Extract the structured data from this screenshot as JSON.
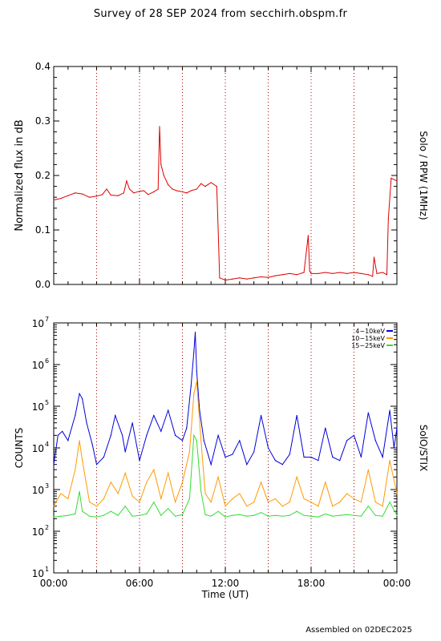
{
  "header": {
    "title": "Survey of 28 SEP 2024 from secchirh.obspm.fr"
  },
  "footer": {
    "assembled": "Assembled on 02DEC2025"
  },
  "chart_data": [
    {
      "type": "line",
      "instrument_label": "Solo / RPW (1MHz)",
      "ylabel": "Normalized flux in dB",
      "xlim": [
        "00:00",
        "24:00"
      ],
      "ylim": [
        0,
        0.4
      ],
      "yticks": [
        "0.0",
        "0.1",
        "0.2",
        "0.3",
        "0.4"
      ],
      "vlines_hours": [
        3,
        6,
        9,
        12,
        15,
        18,
        21
      ],
      "series": [
        {
          "color": "#dd0000",
          "x_hours": [
            0,
            0.5,
            1,
            1.5,
            2,
            2.5,
            3,
            3.4,
            3.7,
            4,
            4.5,
            4.9,
            5.1,
            5.3,
            5.6,
            6,
            6.3,
            6.6,
            7,
            7.3,
            7.4,
            7.5,
            7.7,
            8,
            8.3,
            8.6,
            9,
            9.3,
            9.6,
            10,
            10.3,
            10.6,
            11,
            11.4,
            11.5,
            11.6,
            12,
            12.5,
            13,
            13.5,
            14,
            14.5,
            15,
            15.5,
            16,
            16.5,
            17,
            17.5,
            17.8,
            17.9,
            18,
            18.5,
            19,
            19.5,
            20,
            20.5,
            21,
            21.5,
            22,
            22.3,
            22.4,
            22.6,
            23,
            23.3,
            23.4,
            23.6,
            24
          ],
          "y": [
            0.155,
            0.158,
            0.163,
            0.168,
            0.166,
            0.16,
            0.162,
            0.165,
            0.175,
            0.164,
            0.163,
            0.168,
            0.19,
            0.175,
            0.168,
            0.171,
            0.172,
            0.165,
            0.17,
            0.175,
            0.29,
            0.22,
            0.2,
            0.183,
            0.175,
            0.172,
            0.17,
            0.168,
            0.172,
            0.175,
            0.185,
            0.18,
            0.187,
            0.18,
            0.1,
            0.012,
            0.008,
            0.01,
            0.012,
            0.01,
            0.012,
            0.014,
            0.013,
            0.016,
            0.018,
            0.02,
            0.018,
            0.022,
            0.09,
            0.025,
            0.02,
            0.02,
            0.022,
            0.02,
            0.022,
            0.02,
            0.022,
            0.02,
            0.018,
            0.015,
            0.05,
            0.02,
            0.022,
            0.018,
            0.12,
            0.195,
            0.19
          ]
        }
      ]
    },
    {
      "type": "line",
      "instrument_label": "SolO/STIX",
      "ylabel": "COUNTS",
      "xlabel": "Time (UT)",
      "xlim": [
        "00:00",
        "24:00"
      ],
      "xticks": [
        "00:00",
        "06:00",
        "12:00",
        "18:00",
        "00:00"
      ],
      "ylim": [
        10,
        10000000
      ],
      "yscale": "log",
      "ytick_bases": [
        "10",
        "10",
        "10",
        "10",
        "10",
        "10",
        "10"
      ],
      "ytick_exponents": [
        "1",
        "2",
        "3",
        "4",
        "5",
        "6",
        "7"
      ],
      "vlines_hours": [
        3,
        6,
        9,
        12,
        15,
        18,
        21
      ],
      "legend_position": "top-right",
      "series": [
        {
          "name": "4−10keV",
          "color": "#0000dd",
          "x_hours": [
            0,
            0.3,
            0.6,
            1,
            1.5,
            1.8,
            2.0,
            2.3,
            2.7,
            3,
            3.5,
            4,
            4.3,
            4.8,
            5,
            5.5,
            6,
            6.5,
            7,
            7.5,
            8,
            8.5,
            9,
            9.3,
            9.6,
            9.8,
            9.9,
            10.0,
            10.2,
            10.5,
            11,
            11.5,
            12,
            12.5,
            13,
            13.5,
            14,
            14.5,
            15,
            15.5,
            16,
            16.5,
            17,
            17.5,
            18,
            18.5,
            19,
            19.5,
            20,
            20.5,
            21,
            21.5,
            22,
            22.5,
            23,
            23.5,
            23.8,
            24
          ],
          "y": [
            4000,
            20000,
            25000,
            15000,
            60000,
            200000,
            150000,
            40000,
            12000,
            4000,
            6000,
            20000,
            60000,
            20000,
            8000,
            40000,
            5000,
            20000,
            60000,
            25000,
            80000,
            20000,
            15000,
            30000,
            300000,
            2000000,
            6000000,
            700000,
            80000,
            15000,
            4000,
            20000,
            6000,
            7000,
            15000,
            4000,
            8000,
            60000,
            10000,
            5000,
            4000,
            7000,
            60000,
            6000,
            6000,
            5000,
            30000,
            6000,
            5000,
            15000,
            20000,
            6000,
            70000,
            15000,
            6000,
            80000,
            10000,
            30000
          ]
        },
        {
          "name": "10−15keV",
          "color": "#ff9900",
          "x_hours": [
            0,
            0.5,
            1,
            1.5,
            1.8,
            2,
            2.5,
            3,
            3.5,
            4,
            4.5,
            5,
            5.5,
            6,
            6.5,
            7,
            7.5,
            8,
            8.5,
            9,
            9.5,
            9.8,
            10,
            10.3,
            10.6,
            11,
            11.5,
            12,
            12.5,
            13,
            13.5,
            14,
            14.5,
            15,
            15.5,
            16,
            16.5,
            17,
            17.5,
            18,
            18.5,
            19,
            19.5,
            20,
            20.5,
            21,
            21.5,
            22,
            22.5,
            23,
            23.5,
            24
          ],
          "y": [
            400,
            800,
            600,
            3000,
            15000,
            5000,
            500,
            400,
            600,
            1500,
            800,
            2500,
            700,
            500,
            1500,
            3000,
            600,
            2500,
            500,
            1500,
            8000,
            200000,
            400000,
            15000,
            800,
            500,
            2000,
            400,
            600,
            800,
            400,
            500,
            1500,
            500,
            600,
            400,
            500,
            2000,
            600,
            500,
            400,
            1500,
            400,
            500,
            800,
            600,
            500,
            3000,
            500,
            400,
            5000,
            800
          ]
        },
        {
          "name": "15−25keV",
          "color": "#33dd33",
          "x_hours": [
            0,
            0.5,
            1,
            1.5,
            1.8,
            2,
            2.5,
            3,
            3.5,
            4,
            4.5,
            5,
            5.5,
            6,
            6.5,
            7,
            7.5,
            8,
            8.5,
            9,
            9.5,
            9.8,
            10,
            10.3,
            10.6,
            11,
            11.5,
            12,
            12.5,
            13,
            13.5,
            14,
            14.5,
            15,
            15.5,
            16,
            16.5,
            17,
            17.5,
            18,
            18.5,
            19,
            19.5,
            20,
            20.5,
            21,
            21.5,
            22,
            22.5,
            23,
            23.5,
            24
          ],
          "y": [
            220,
            230,
            240,
            260,
            900,
            300,
            230,
            220,
            240,
            300,
            240,
            400,
            230,
            240,
            260,
            500,
            240,
            350,
            230,
            250,
            600,
            20000,
            15000,
            900,
            250,
            230,
            300,
            220,
            240,
            250,
            230,
            240,
            280,
            230,
            240,
            230,
            240,
            300,
            240,
            230,
            220,
            260,
            230,
            240,
            250,
            240,
            230,
            400,
            240,
            230,
            500,
            240
          ]
        }
      ]
    }
  ]
}
